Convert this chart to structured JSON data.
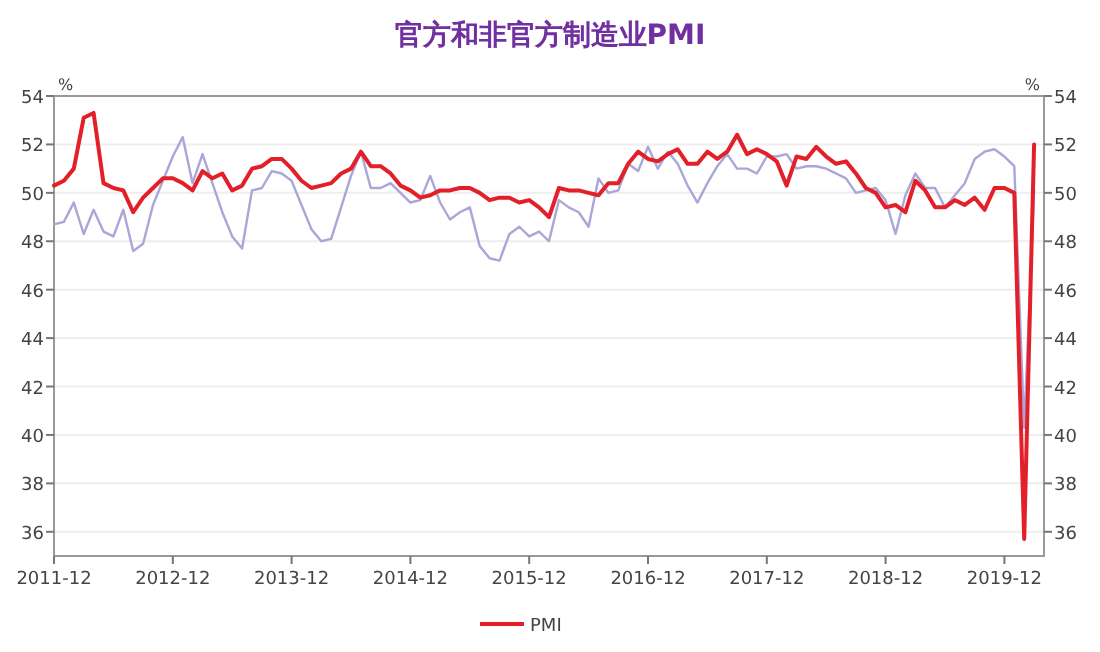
{
  "chart_data": {
    "type": "line",
    "title": "官方和非官方制造业PMI",
    "ylabel": "%",
    "y2label": "%",
    "x": [
      "2011-12",
      "2012-01",
      "2012-02",
      "2012-03",
      "2012-04",
      "2012-05",
      "2012-06",
      "2012-07",
      "2012-08",
      "2012-09",
      "2012-10",
      "2012-11",
      "2012-12",
      "2013-01",
      "2013-02",
      "2013-03",
      "2013-04",
      "2013-05",
      "2013-06",
      "2013-07",
      "2013-08",
      "2013-09",
      "2013-10",
      "2013-11",
      "2013-12",
      "2014-01",
      "2014-02",
      "2014-03",
      "2014-04",
      "2014-05",
      "2014-06",
      "2014-07",
      "2014-08",
      "2014-09",
      "2014-10",
      "2014-11",
      "2014-12",
      "2015-01",
      "2015-02",
      "2015-03",
      "2015-04",
      "2015-05",
      "2015-06",
      "2015-07",
      "2015-08",
      "2015-09",
      "2015-10",
      "2015-11",
      "2015-12",
      "2016-01",
      "2016-02",
      "2016-03",
      "2016-04",
      "2016-05",
      "2016-06",
      "2016-07",
      "2016-08",
      "2016-09",
      "2016-10",
      "2016-11",
      "2016-12",
      "2017-01",
      "2017-02",
      "2017-03",
      "2017-04",
      "2017-05",
      "2017-06",
      "2017-07",
      "2017-08",
      "2017-09",
      "2017-10",
      "2017-11",
      "2017-12",
      "2018-01",
      "2018-02",
      "2018-03",
      "2018-04",
      "2018-05",
      "2018-06",
      "2018-07",
      "2018-08",
      "2018-09",
      "2018-10",
      "2018-11",
      "2018-12",
      "2019-01",
      "2019-02",
      "2019-03",
      "2019-04",
      "2019-05",
      "2019-06",
      "2019-07",
      "2019-08",
      "2019-09",
      "2019-10",
      "2019-11",
      "2019-12",
      "2020-01",
      "2020-02",
      "2020-03"
    ],
    "series": [
      {
        "color": "#a9a6d8",
        "values": [
          48.7,
          48.8,
          49.6,
          48.3,
          49.3,
          48.4,
          48.2,
          49.3,
          47.6,
          47.9,
          49.5,
          50.5,
          51.5,
          52.3,
          50.4,
          51.6,
          50.4,
          49.2,
          48.2,
          47.7,
          50.1,
          50.2,
          50.9,
          50.8,
          50.5,
          49.5,
          48.5,
          48.0,
          48.1,
          49.4,
          50.7,
          51.7,
          50.2,
          50.2,
          50.4,
          50.0,
          49.6,
          49.7,
          50.7,
          49.6,
          48.9,
          49.2,
          49.4,
          47.8,
          47.3,
          47.2,
          48.3,
          48.6,
          48.2,
          48.4,
          48.0,
          49.7,
          49.4,
          49.2,
          48.6,
          50.6,
          50.0,
          50.1,
          51.2,
          50.9,
          51.9,
          51.0,
          51.7,
          51.2,
          50.3,
          49.6,
          50.4,
          51.1,
          51.6,
          51.0,
          51.0,
          50.8,
          51.5,
          51.5,
          51.6,
          51.0,
          51.1,
          51.1,
          51.0,
          50.8,
          50.6,
          50.0,
          50.1,
          50.2,
          49.7,
          48.3,
          49.9,
          50.8,
          50.2,
          50.2,
          49.4,
          49.9,
          50.4,
          51.4,
          51.7,
          51.8,
          51.5,
          51.1,
          40.3,
          50.1
        ]
      },
      {
        "name": "PMI",
        "color": "#e3202a",
        "values": [
          50.3,
          50.5,
          51.0,
          53.1,
          53.3,
          50.4,
          50.2,
          50.1,
          49.2,
          49.8,
          50.2,
          50.6,
          50.6,
          50.4,
          50.1,
          50.9,
          50.6,
          50.8,
          50.1,
          50.3,
          51.0,
          51.1,
          51.4,
          51.4,
          51.0,
          50.5,
          50.2,
          50.3,
          50.4,
          50.8,
          51.0,
          51.7,
          51.1,
          51.1,
          50.8,
          50.3,
          50.1,
          49.8,
          49.9,
          50.1,
          50.1,
          50.2,
          50.2,
          50.0,
          49.7,
          49.8,
          49.8,
          49.6,
          49.7,
          49.4,
          49.0,
          50.2,
          50.1,
          50.1,
          50.0,
          49.9,
          50.4,
          50.4,
          51.2,
          51.7,
          51.4,
          51.3,
          51.6,
          51.8,
          51.2,
          51.2,
          51.7,
          51.4,
          51.7,
          52.4,
          51.6,
          51.8,
          51.6,
          51.3,
          50.3,
          51.5,
          51.4,
          51.9,
          51.5,
          51.2,
          51.3,
          50.8,
          50.2,
          50.0,
          49.4,
          49.5,
          49.2,
          50.5,
          50.1,
          49.4,
          49.4,
          49.7,
          49.5,
          49.8,
          49.3,
          50.2,
          50.2,
          50.0,
          35.7,
          52.0
        ]
      }
    ],
    "xlim": [
      "2011-12",
      "2020-04"
    ],
    "xticks": [
      "2011-12",
      "2012-12",
      "2013-12",
      "2014-12",
      "2015-12",
      "2016-12",
      "2017-12",
      "2018-12",
      "2019-12"
    ],
    "ylim": [
      35,
      54
    ],
    "yticks": [
      36,
      38,
      40,
      42,
      44,
      46,
      48,
      50,
      52,
      54
    ],
    "y2lim": [
      35,
      54
    ],
    "y2ticks": [
      36,
      38,
      40,
      42,
      44,
      46,
      48,
      50,
      52,
      54
    ],
    "grid": "y",
    "legend": "bottom"
  }
}
